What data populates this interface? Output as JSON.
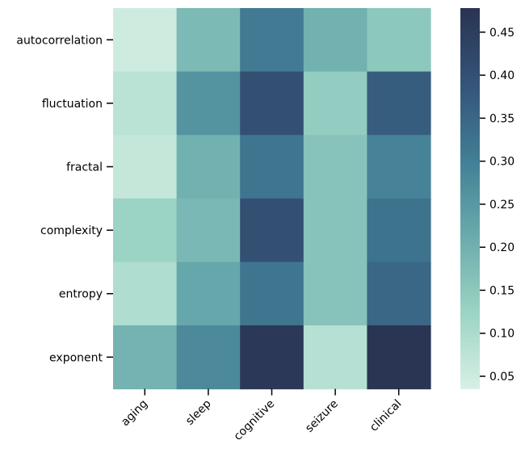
{
  "chart_data": {
    "type": "heatmap",
    "rows": [
      "autocorrelation",
      "fluctuation",
      "fractal",
      "complexity",
      "entropy",
      "exponent"
    ],
    "columns": [
      "aging",
      "sleep",
      "cognitive",
      "seizure",
      "clinical"
    ],
    "values": [
      [
        0.05,
        0.18,
        0.31,
        0.2,
        0.15
      ],
      [
        0.08,
        0.26,
        0.4,
        0.14,
        0.37
      ],
      [
        0.065,
        0.2,
        0.32,
        0.16,
        0.29
      ],
      [
        0.125,
        0.185,
        0.4,
        0.16,
        0.325
      ],
      [
        0.095,
        0.22,
        0.32,
        0.16,
        0.35
      ],
      [
        0.195,
        0.28,
        0.465,
        0.085,
        0.475
      ]
    ],
    "vmin": 0.035,
    "vmax": 0.478,
    "colorbar_ticks": [
      0.05,
      0.1,
      0.15,
      0.2,
      0.25,
      0.3,
      0.35,
      0.4,
      0.45
    ],
    "colorbar_tick_labels": [
      "0.05",
      "0.10",
      "0.15",
      "0.20",
      "0.25",
      "0.30",
      "0.35",
      "0.40",
      "0.45"
    ],
    "colormap": [
      "#d8f0e6",
      "#9cd4c4",
      "#6aabad",
      "#427e95",
      "#345478",
      "#2a3352"
    ],
    "title": "",
    "xlabel": "",
    "ylabel": ""
  }
}
